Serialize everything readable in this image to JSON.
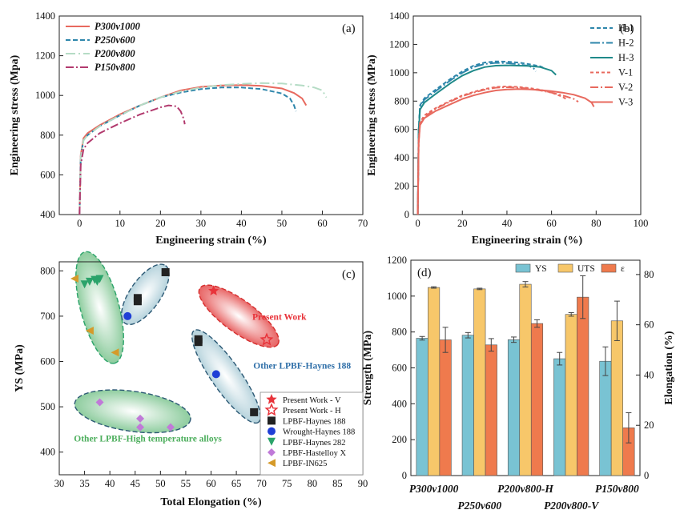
{
  "chart_data": [
    {
      "panel": "(a)",
      "type": "line",
      "xlabel": "Engineering strain (%)",
      "ylabel": "Engineering stress (Mpa)",
      "xlim": [
        -5,
        70
      ],
      "ylim": [
        400,
        1400
      ],
      "xticks": [
        0,
        10,
        20,
        30,
        40,
        50,
        60,
        70
      ],
      "yticks": [
        400,
        600,
        800,
        1000,
        1200,
        1400
      ],
      "legend": "top-left",
      "series": [
        {
          "name": "P300v1000",
          "color": "#e8695e",
          "dash": "solid",
          "points": [
            [
              0,
              400
            ],
            [
              0.3,
              700
            ],
            [
              1,
              785
            ],
            [
              2,
              810
            ],
            [
              5,
              850
            ],
            [
              10,
              905
            ],
            [
              15,
              950
            ],
            [
              20,
              990
            ],
            [
              25,
              1025
            ],
            [
              30,
              1043
            ],
            [
              35,
              1050
            ],
            [
              40,
              1052
            ],
            [
              45,
              1048
            ],
            [
              50,
              1035
            ],
            [
              53,
              1012
            ],
            [
              55,
              985
            ],
            [
              56,
              950
            ]
          ]
        },
        {
          "name": "P250v600",
          "color": "#2e86ab",
          "dash": "6,3",
          "points": [
            [
              0,
              400
            ],
            [
              0.3,
              690
            ],
            [
              1,
              775
            ],
            [
              2,
              800
            ],
            [
              5,
              845
            ],
            [
              10,
              900
            ],
            [
              15,
              950
            ],
            [
              20,
              990
            ],
            [
              25,
              1015
            ],
            [
              30,
              1032
            ],
            [
              35,
              1040
            ],
            [
              40,
              1040
            ],
            [
              45,
              1032
            ],
            [
              50,
              1010
            ],
            [
              52,
              985
            ],
            [
              53,
              950
            ],
            [
              53.5,
              920
            ]
          ]
        },
        {
          "name": "P200v800",
          "color": "#b5dcc5",
          "dash": "12,4,2,4",
          "points": [
            [
              0,
              400
            ],
            [
              0.3,
              690
            ],
            [
              1,
              775
            ],
            [
              2,
              800
            ],
            [
              5,
              845
            ],
            [
              10,
              900
            ],
            [
              15,
              950
            ],
            [
              20,
              990
            ],
            [
              25,
              1020
            ],
            [
              30,
              1040
            ],
            [
              35,
              1052
            ],
            [
              40,
              1058
            ],
            [
              45,
              1062
            ],
            [
              50,
              1060
            ],
            [
              55,
              1050
            ],
            [
              58,
              1040
            ],
            [
              60,
              1025
            ],
            [
              61,
              990
            ]
          ]
        },
        {
          "name": "P150v800",
          "color": "#b23a6e",
          "dash": "10,3,2,3",
          "points": [
            [
              0,
              400
            ],
            [
              0.3,
              650
            ],
            [
              1,
              730
            ],
            [
              2,
              760
            ],
            [
              5,
              810
            ],
            [
              10,
              860
            ],
            [
              15,
              905
            ],
            [
              20,
              940
            ],
            [
              22,
              950
            ],
            [
              24,
              945
            ],
            [
              25,
              920
            ],
            [
              25.8,
              880
            ],
            [
              26,
              855
            ]
          ]
        }
      ]
    },
    {
      "panel": "(b)",
      "type": "line",
      "xlabel": "Engineering strain (%)",
      "ylabel": "Engineering stress (MPa)",
      "xlim": [
        -2,
        100
      ],
      "ylim": [
        0,
        1400
      ],
      "xticks": [
        0,
        20,
        40,
        60,
        80,
        100
      ],
      "yticks": [
        0,
        200,
        400,
        600,
        800,
        1000,
        1200,
        1400
      ],
      "legend": "right",
      "series": [
        {
          "name": "H-1",
          "color": "#2e86ab",
          "dash": "5,3",
          "points": [
            [
              0,
              0
            ],
            [
              0.4,
              600
            ],
            [
              1,
              770
            ],
            [
              3,
              820
            ],
            [
              8,
              880
            ],
            [
              15,
              960
            ],
            [
              20,
              1010
            ],
            [
              25,
              1050
            ],
            [
              30,
              1072
            ],
            [
              35,
              1080
            ],
            [
              40,
              1078
            ],
            [
              45,
              1072
            ],
            [
              50,
              1060
            ],
            [
              55,
              1045
            ],
            [
              57,
              1030
            ]
          ]
        },
        {
          "name": "H-2",
          "color": "#2e86ab",
          "dash": "12,3,2,3",
          "points": [
            [
              0,
              0
            ],
            [
              0.4,
              590
            ],
            [
              1,
              760
            ],
            [
              3,
              810
            ],
            [
              8,
              870
            ],
            [
              15,
              950
            ],
            [
              20,
              1000
            ],
            [
              25,
              1040
            ],
            [
              30,
              1062
            ],
            [
              35,
              1070
            ],
            [
              40,
              1068
            ],
            [
              45,
              1060
            ],
            [
              50,
              1048
            ],
            [
              52,
              1030
            ],
            [
              53,
              1010
            ]
          ]
        },
        {
          "name": "H-3",
          "color": "#1f8a8a",
          "dash": "solid",
          "points": [
            [
              0,
              0
            ],
            [
              0.4,
              580
            ],
            [
              1,
              740
            ],
            [
              3,
              790
            ],
            [
              8,
              850
            ],
            [
              15,
              930
            ],
            [
              20,
              980
            ],
            [
              25,
              1015
            ],
            [
              30,
              1040
            ],
            [
              35,
              1050
            ],
            [
              40,
              1052
            ],
            [
              45,
              1050
            ],
            [
              50,
              1048
            ],
            [
              55,
              1040
            ],
            [
              60,
              1015
            ],
            [
              62,
              985
            ]
          ]
        },
        {
          "name": "V-1",
          "color": "#e8695e",
          "dash": "4,3",
          "points": [
            [
              0,
              0
            ],
            [
              0.4,
              520
            ],
            [
              1,
              650
            ],
            [
              3,
              700
            ],
            [
              8,
              750
            ],
            [
              15,
              805
            ],
            [
              20,
              840
            ],
            [
              25,
              865
            ],
            [
              30,
              885
            ],
            [
              35,
              900
            ],
            [
              40,
              903
            ],
            [
              45,
              900
            ],
            [
              50,
              892
            ],
            [
              55,
              880
            ],
            [
              60,
              860
            ],
            [
              65,
              830
            ],
            [
              67,
              810
            ]
          ]
        },
        {
          "name": "V-2",
          "color": "#e8695e",
          "dash": "10,3,2,3",
          "points": [
            [
              0,
              0
            ],
            [
              0.4,
              510
            ],
            [
              1,
              640
            ],
            [
              3,
              690
            ],
            [
              8,
              745
            ],
            [
              15,
              800
            ],
            [
              20,
              835
            ],
            [
              25,
              860
            ],
            [
              30,
              880
            ],
            [
              35,
              895
            ],
            [
              40,
              898
            ],
            [
              45,
              895
            ],
            [
              50,
              888
            ],
            [
              55,
              875
            ],
            [
              60,
              860
            ],
            [
              65,
              840
            ],
            [
              70,
              815
            ],
            [
              72,
              795
            ]
          ]
        },
        {
          "name": "V-3",
          "color": "#e8695e",
          "dash": "solid",
          "points": [
            [
              0,
              0
            ],
            [
              0.4,
              500
            ],
            [
              1,
              630
            ],
            [
              3,
              680
            ],
            [
              8,
              730
            ],
            [
              15,
              780
            ],
            [
              20,
              815
            ],
            [
              25,
              840
            ],
            [
              30,
              860
            ],
            [
              35,
              875
            ],
            [
              40,
              882
            ],
            [
              45,
              885
            ],
            [
              50,
              883
            ],
            [
              55,
              878
            ],
            [
              60,
              870
            ],
            [
              65,
              860
            ],
            [
              70,
              845
            ],
            [
              75,
              820
            ],
            [
              78,
              790
            ],
            [
              79,
              760
            ]
          ]
        }
      ]
    },
    {
      "panel": "(c)",
      "type": "scatter",
      "xlabel": "Total Elongation (%)",
      "ylabel": "YS (MPa)",
      "xlim": [
        30,
        90
      ],
      "ylim": [
        350,
        820
      ],
      "xticks": [
        30,
        35,
        40,
        45,
        50,
        55,
        60,
        65,
        70,
        75,
        80,
        85,
        90
      ],
      "yticks": [
        400,
        500,
        600,
        700,
        800
      ],
      "legend": "lower-right",
      "series": [
        {
          "name": "Present Work - V",
          "marker": "star-filled",
          "color": "#e8333a",
          "points": [
            [
              60.5,
              756
            ]
          ]
        },
        {
          "name": "Present Work - H",
          "marker": "star-open",
          "color": "#e8333a",
          "points": [
            [
              71,
              648
            ]
          ]
        },
        {
          "name": "LPBF-Haynes 188",
          "marker": "square",
          "color": "#222222",
          "points": [
            [
              45.5,
              740
            ],
            [
              45.5,
              733
            ],
            [
              51,
              797
            ],
            [
              57.5,
              643
            ],
            [
              57.5,
              649
            ],
            [
              68.5,
              488
            ]
          ]
        },
        {
          "name": "Wrought-Haynes 188",
          "marker": "circle",
          "color": "#1f3fd6",
          "points": [
            [
              43.5,
              700
            ],
            [
              61,
              572
            ]
          ]
        },
        {
          "name": "LPBF-Haynes 282",
          "marker": "triangle-down",
          "color": "#2ba36a",
          "points": [
            [
              35,
              770
            ],
            [
              36,
              776
            ],
            [
              37,
              780
            ],
            [
              37.5,
              776
            ],
            [
              38,
              782
            ]
          ]
        },
        {
          "name": "LPBF-Hastelloy X",
          "marker": "diamond",
          "color": "#c07ad8",
          "points": [
            [
              38,
              510
            ],
            [
              46,
              474
            ],
            [
              46,
              455
            ],
            [
              52,
              455
            ]
          ]
        },
        {
          "name": "LPBF-IN625",
          "marker": "triangle-left",
          "color": "#d59a2a",
          "points": [
            [
              33,
              783
            ],
            [
              36,
              668
            ],
            [
              41,
              620
            ]
          ]
        }
      ],
      "annotations": [
        "Present Work",
        "Other LPBF-Haynes 188",
        "Other LPBF-High temperature alloys"
      ]
    },
    {
      "panel": "(d)",
      "type": "bar",
      "ylabel": "Strength (MPa)",
      "y2label": "Elongation (%)",
      "categories": [
        "P300v1000",
        "P250v600",
        "P200v800-H",
        "P200v800-V",
        "P150v800"
      ],
      "ylim": [
        0,
        1200
      ],
      "y2lim": [
        0,
        85.7
      ],
      "yticks": [
        0,
        200,
        400,
        600,
        800,
        1000,
        1200
      ],
      "y2ticks": [
        0,
        20,
        40,
        60,
        80
      ],
      "legend": "top-right",
      "series": [
        {
          "name": "YS",
          "axis": "left",
          "color": "#79c3d3",
          "values": [
            765,
            782,
            757,
            651,
            637
          ],
          "errors": [
            10,
            15,
            15,
            35,
            80
          ]
        },
        {
          "name": "UTS",
          "axis": "right-left",
          "color": "#f7c76a",
          "values": [
            1048,
            1040,
            1066,
            898,
            862
          ],
          "errors": [
            4,
            4,
            15,
            10,
            110
          ]
        },
        {
          "name": "ε",
          "axis": "right",
          "color": "#ef7a4d",
          "values": [
            54,
            52,
            60.5,
            71,
            19
          ],
          "errors": [
            5,
            2.5,
            1.5,
            8.5,
            6
          ]
        }
      ]
    }
  ]
}
